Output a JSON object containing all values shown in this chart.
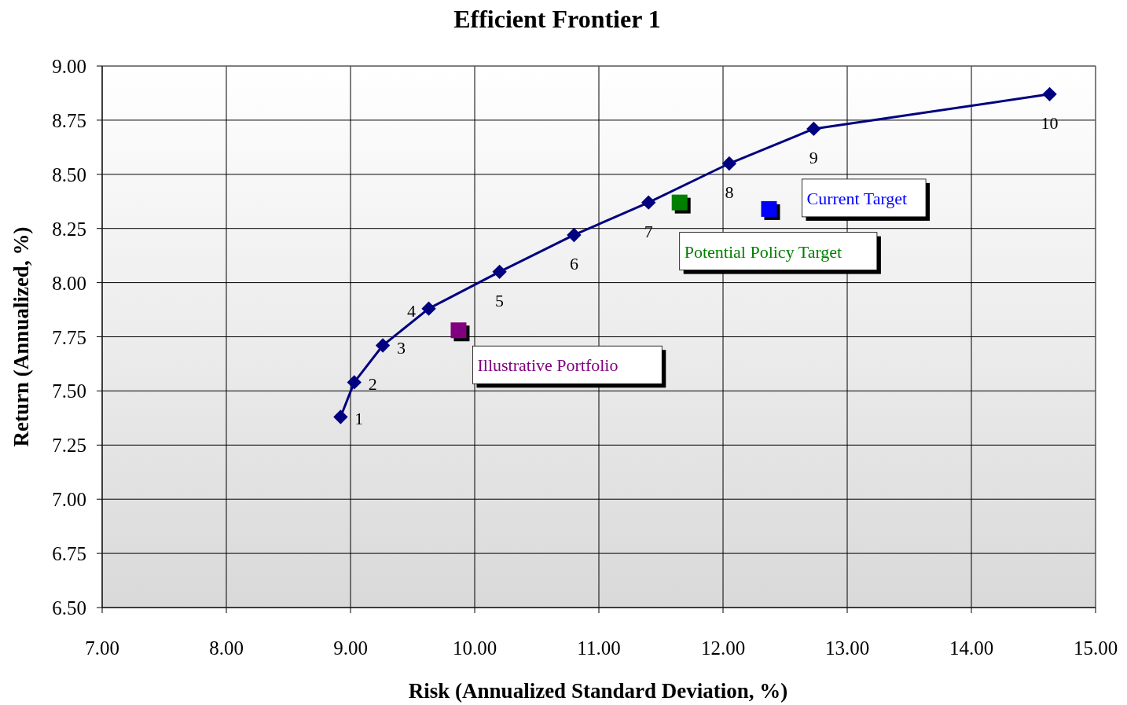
{
  "chart_data": {
    "type": "line",
    "title": "Efficient Frontier 1",
    "xlabel": "Risk (Annualized Standard Deviation, %)",
    "ylabel": "Return (Annualized, %)",
    "xlim": [
      7,
      15
    ],
    "xticks": [
      {
        "value": 7,
        "label": "7.00"
      },
      {
        "value": 8,
        "label": "8.00"
      },
      {
        "value": 9,
        "label": "9.00"
      },
      {
        "value": 10,
        "label": "10.00"
      },
      {
        "value": 11,
        "label": "11.00"
      },
      {
        "value": 12,
        "label": "12.00"
      },
      {
        "value": 13,
        "label": "13.00"
      },
      {
        "value": 14,
        "label": "14.00"
      },
      {
        "value": 15,
        "label": "15.00"
      }
    ],
    "ylim": [
      6.5,
      9
    ],
    "yticks": [
      {
        "value": 6.5,
        "label": "6.50"
      },
      {
        "value": 6.75,
        "label": "6.75"
      },
      {
        "value": 7,
        "label": "7.00"
      },
      {
        "value": 7.25,
        "label": "7.25"
      },
      {
        "value": 7.5,
        "label": "7.50"
      },
      {
        "value": 7.75,
        "label": "7.75"
      },
      {
        "value": 8,
        "label": "8.00"
      },
      {
        "value": 8.25,
        "label": "8.25"
      },
      {
        "value": 8.5,
        "label": "8.50"
      },
      {
        "value": 8.75,
        "label": "8.75"
      },
      {
        "value": 9,
        "label": "9.00"
      }
    ],
    "grid": true,
    "annotations": [
      {
        "text": "1",
        "x": 8.92,
        "y": 7.38
      },
      {
        "text": "2",
        "x": 9.03,
        "y": 7.54
      },
      {
        "text": "3",
        "x": 9.26,
        "y": 7.71
      },
      {
        "text": "4",
        "x": 9.63,
        "y": 7.88
      },
      {
        "text": "5",
        "x": 10.2,
        "y": 8.05
      },
      {
        "text": "6",
        "x": 10.8,
        "y": 8.22
      },
      {
        "text": "7",
        "x": 11.4,
        "y": 8.37
      },
      {
        "text": "8",
        "x": 12.05,
        "y": 8.55
      },
      {
        "text": "9",
        "x": 12.73,
        "y": 8.71
      },
      {
        "text": "10",
        "x": 14.63,
        "y": 8.87
      }
    ],
    "series": [
      {
        "marker": "diamond",
        "color": "#000080",
        "x": [
          8.92,
          9.03,
          9.26,
          9.63,
          10.2,
          10.8,
          11.4,
          12.05,
          12.73,
          14.63
        ],
        "values": [
          7.38,
          7.54,
          7.71,
          7.88,
          8.05,
          8.22,
          8.37,
          8.55,
          8.71,
          8.87
        ]
      },
      {
        "type": "scatter",
        "marker": "square",
        "name": "Illustrative Portfolio",
        "color": "#800080",
        "x": [
          9.87
        ],
        "values": [
          7.78
        ]
      },
      {
        "type": "scatter",
        "marker": "square",
        "name": "Potential Policy Target",
        "color": "#008000",
        "x": [
          11.65
        ],
        "values": [
          8.37
        ]
      },
      {
        "type": "scatter",
        "marker": "square",
        "name": "Current Target",
        "color": "#0000ff",
        "x": [
          12.37
        ],
        "values": [
          8.34
        ]
      }
    ]
  }
}
